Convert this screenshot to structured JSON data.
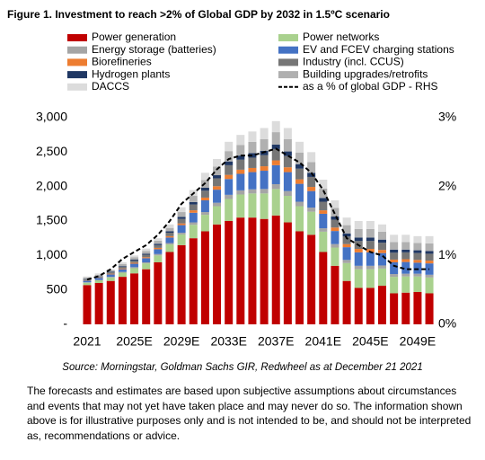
{
  "chart_data": {
    "type": "bar",
    "title": "Figure 1. Investment to reach >2% of Global GDP by 2032 in 1.5ºC scenario",
    "source": "Source: Morningstar, Goldman Sachs GIR, Redwheel as at December 21 2021",
    "note": "The forecasts and estimates are based upon subjective assumptions about circumstances and events that may not yet have taken place and may never do so. The information shown above is for illustrative purposes only and is not intended to be, and should not be interpreted as, recommendations or advice.",
    "categories": [
      "2021",
      null,
      null,
      null,
      "2025E",
      null,
      null,
      null,
      "2029E",
      null,
      null,
      null,
      "2033E",
      null,
      null,
      null,
      "2037E",
      null,
      null,
      null,
      "2041E",
      null,
      null,
      null,
      "2045E",
      null,
      null,
      null,
      "2049E",
      null
    ],
    "stacked": true,
    "series": [
      {
        "name": "Power generation",
        "color": "#c00000",
        "values": [
          570,
          600,
          630,
          690,
          740,
          800,
          900,
          1050,
          1150,
          1250,
          1350,
          1450,
          1500,
          1550,
          1550,
          1530,
          1580,
          1480,
          1350,
          1300,
          1050,
          850,
          630,
          530,
          530,
          560,
          450,
          460,
          470,
          450
        ]
      },
      {
        "name": "Power networks",
        "color": "#a9d18e",
        "values": [
          35,
          40,
          50,
          60,
          75,
          85,
          100,
          110,
          155,
          195,
          240,
          265,
          320,
          335,
          350,
          370,
          385,
          385,
          365,
          335,
          295,
          265,
          260,
          270,
          270,
          250,
          240,
          235,
          225,
          230
        ]
      },
      {
        "name": "Energy storage (batteries)",
        "color": "#a5a5a5",
        "values": [
          5,
          5,
          10,
          10,
          15,
          15,
          20,
          20,
          25,
          35,
          40,
          50,
          60,
          60,
          60,
          65,
          70,
          70,
          65,
          60,
          50,
          50,
          45,
          50,
          50,
          45,
          40,
          40,
          40,
          40
        ]
      },
      {
        "name": "EV and FCEV charging stations",
        "color": "#4472c4",
        "values": [
          25,
          30,
          35,
          40,
          50,
          60,
          70,
          80,
          110,
          140,
          170,
          190,
          230,
          240,
          250,
          265,
          275,
          275,
          260,
          240,
          210,
          190,
          185,
          195,
          195,
          180,
          170,
          170,
          160,
          165
        ]
      },
      {
        "name": "Biorefineries",
        "color": "#ed7d31",
        "values": [
          5,
          5,
          10,
          10,
          15,
          15,
          20,
          20,
          25,
          35,
          40,
          50,
          60,
          60,
          60,
          65,
          70,
          70,
          65,
          60,
          50,
          50,
          45,
          50,
          50,
          45,
          40,
          40,
          40,
          40
        ]
      },
      {
        "name": "Industry (incl. CCUS)",
        "color": "#767676",
        "values": [
          15,
          15,
          20,
          25,
          30,
          35,
          40,
          50,
          65,
          85,
          100,
          115,
          140,
          145,
          150,
          160,
          165,
          165,
          155,
          145,
          125,
          115,
          110,
          115,
          115,
          105,
          100,
          100,
          100,
          100
        ]
      },
      {
        "name": "Hydrogen plants",
        "color": "#203864",
        "values": [
          5,
          5,
          10,
          10,
          15,
          15,
          20,
          20,
          30,
          35,
          45,
          45,
          55,
          60,
          65,
          65,
          65,
          65,
          65,
          60,
          55,
          45,
          45,
          50,
          50,
          45,
          45,
          40,
          40,
          40
        ]
      },
      {
        "name": "Building upgrades/retrofits",
        "color": "#b0b0b0",
        "values": [
          20,
          20,
          20,
          30,
          35,
          40,
          45,
          50,
          70,
          90,
          110,
          125,
          150,
          155,
          165,
          170,
          180,
          180,
          170,
          155,
          135,
          125,
          120,
          125,
          125,
          115,
          110,
          110,
          105,
          110
        ]
      },
      {
        "name": "DACCS",
        "color": "#dcdcdc",
        "values": [
          15,
          20,
          15,
          25,
          25,
          35,
          35,
          50,
          70,
          85,
          105,
          110,
          135,
          145,
          150,
          160,
          160,
          160,
          155,
          145,
          130,
          110,
          110,
          115,
          115,
          105,
          105,
          105,
          100,
          105
        ]
      },
      {
        "name": "as a % of global GDP - RHS",
        "type": "line",
        "axis": "y2",
        "color": "#000000",
        "line_style": "dashed",
        "values": [
          0.65,
          0.7,
          0.8,
          0.95,
          1.05,
          1.15,
          1.3,
          1.5,
          1.75,
          1.9,
          2.05,
          2.25,
          2.4,
          2.45,
          2.45,
          2.5,
          2.55,
          2.45,
          2.35,
          2.2,
          1.95,
          1.6,
          1.25,
          1.15,
          1.05,
          1.0,
          0.85,
          0.8,
          0.8,
          0.8
        ]
      }
    ],
    "ylim": [
      0,
      3000
    ],
    "yticks": [
      {
        "value": 0,
        "label": "-"
      },
      500,
      {
        "value": 1000,
        "label": "1,000"
      },
      {
        "value": 1500,
        "label": "1,500"
      },
      {
        "value": 2000,
        "label": "2,000"
      },
      {
        "value": 2500,
        "label": "2,500"
      },
      {
        "value": 3000,
        "label": "3,000"
      }
    ],
    "y2lim": [
      0,
      3
    ],
    "y2ticks": [
      {
        "value": 0,
        "label": "0%"
      },
      {
        "value": 1,
        "label": "1%"
      },
      {
        "value": 2,
        "label": "2%"
      },
      {
        "value": 3,
        "label": "3%"
      }
    ],
    "grid": false
  }
}
